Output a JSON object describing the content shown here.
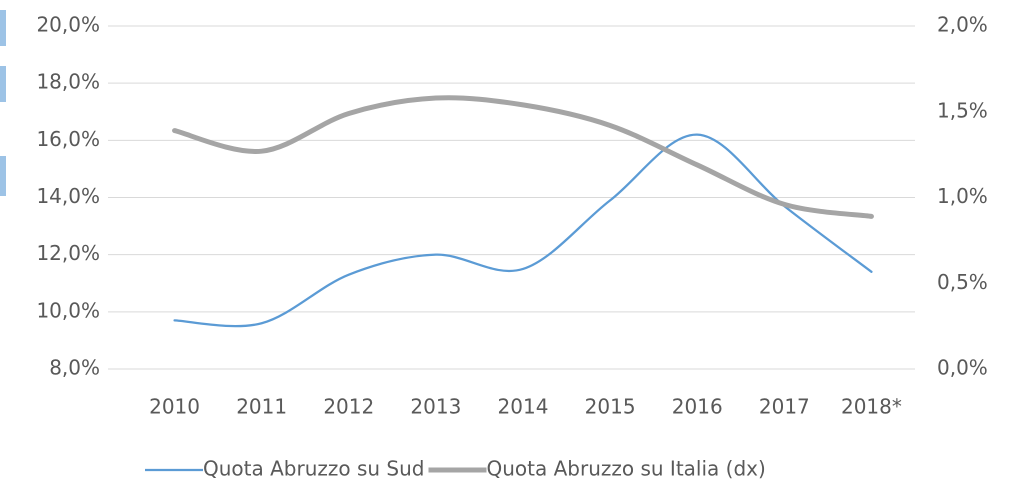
{
  "chart_data": {
    "type": "line",
    "categories": [
      "2010",
      "2011",
      "2012",
      "2013",
      "2014",
      "2015",
      "2016",
      "2017",
      "2018*"
    ],
    "series": [
      {
        "name": "Quota Abruzzo su Sud",
        "color": "#5b9bd5",
        "axis": "y",
        "values": [
          9.7,
          9.6,
          11.3,
          12.0,
          11.5,
          13.9,
          16.2,
          13.7,
          11.4
        ]
      },
      {
        "name": "Quota Abruzzo su Italia (dx)",
        "color": "#a5a5a5",
        "axis": "y2",
        "values": [
          1.39,
          1.27,
          1.49,
          1.58,
          1.54,
          1.42,
          1.19,
          0.96,
          0.89
        ]
      }
    ],
    "ylim": [
      8,
      20
    ],
    "yticks": [
      {
        "value": 8,
        "label": "8,0%"
      },
      {
        "value": 10,
        "label": "10,0%"
      },
      {
        "value": 12,
        "label": "12,0%"
      },
      {
        "value": 14,
        "label": "14,0%"
      },
      {
        "value": 16,
        "label": "16,0%"
      },
      {
        "value": 18,
        "label": "18,0%"
      },
      {
        "value": 20,
        "label": "20,0%"
      }
    ],
    "y2lim": [
      0,
      2
    ],
    "y2ticks": [
      {
        "value": 0,
        "label": "0,0%"
      },
      {
        "value": 0.5,
        "label": "0,5%"
      },
      {
        "value": 1,
        "label": "1,0%"
      },
      {
        "value": 1.5,
        "label": "1,5%"
      },
      {
        "value": 2,
        "label": "2,0%"
      }
    ],
    "grid": true,
    "legend": "bottom"
  }
}
